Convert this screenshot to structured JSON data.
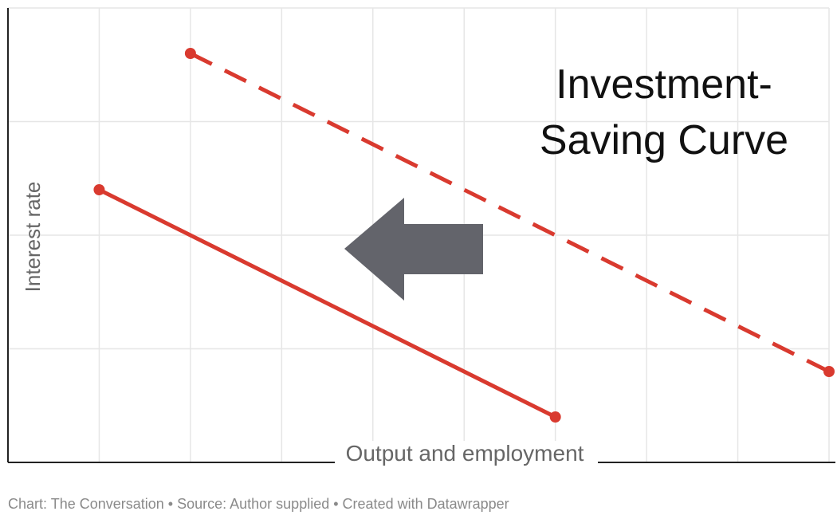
{
  "chart_data": {
    "type": "line",
    "title": "",
    "annotation": [
      "Investment-",
      "Saving Curve"
    ],
    "xlabel": "Output and employment",
    "ylabel": "Interest rate",
    "xlim": [
      0,
      9
    ],
    "ylim": [
      0,
      4
    ],
    "grid": true,
    "show_tick_labels": false,
    "series": [
      {
        "style": "solid",
        "color": "#d93a2f",
        "points": [
          [
            1,
            2.4
          ],
          [
            6,
            0.4
          ]
        ]
      },
      {
        "style": "dashed",
        "color": "#d93a2f",
        "points": [
          [
            2,
            3.6
          ],
          [
            9,
            0.8
          ]
        ]
      }
    ],
    "shift_arrow": {
      "direction": "left",
      "color": "#63646b"
    }
  },
  "footer": {
    "credit": "Chart: The Conversation",
    "separator": " • ",
    "source": "Source: Author supplied",
    "tool": "Created with Datawrapper"
  },
  "colors": {
    "grid": "#e6e6e6",
    "axis": "#222222",
    "label": "#666666",
    "annotation": "#111111",
    "footer": "#8a8a8a"
  }
}
